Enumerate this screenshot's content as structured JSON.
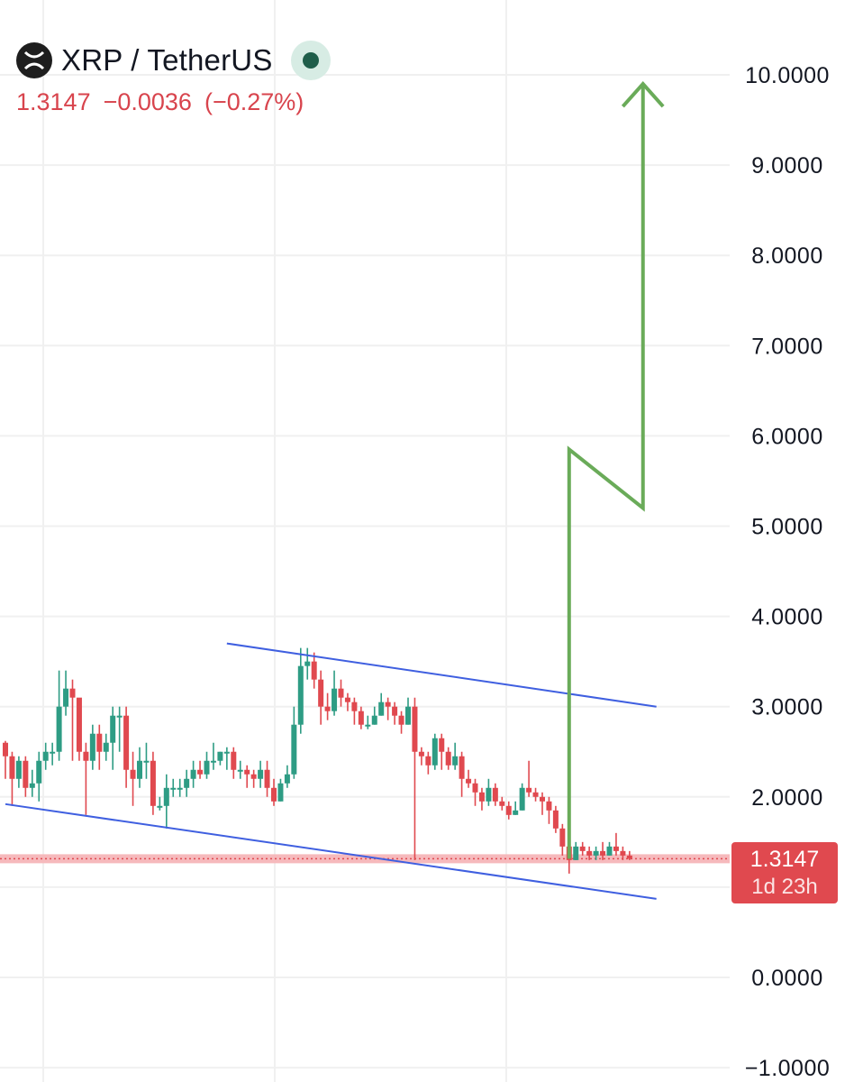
{
  "header": {
    "symbol": "XRP / TetherUS",
    "logo_icon": "xrp-logo-icon",
    "status": "market-open-dot",
    "last_price": "1.3147",
    "change": "−0.0036",
    "change_pct": "(−0.27%)",
    "change_color": "#d8444d"
  },
  "price_label": {
    "price": "1.3147",
    "countdown": "1d 23h",
    "color": "#e0494f"
  },
  "colors": {
    "up": "#2e9c84",
    "down": "#e0494f",
    "channel": "#3f5fe0",
    "projection": "#6aab59",
    "grid": "#f0f0f0"
  },
  "chart_data": {
    "type": "candlestick",
    "y_axis": {
      "ticks": [
        "10.0000",
        "9.0000",
        "8.0000",
        "7.0000",
        "6.0000",
        "5.0000",
        "4.0000",
        "3.0000",
        "2.0000",
        "0.0000",
        "−1.0000"
      ],
      "tick_values": [
        10,
        9,
        8,
        7,
        6,
        5,
        4,
        3,
        2,
        0,
        -1
      ],
      "range": [
        -1.15,
        10.8
      ]
    },
    "current_price": 1.3147,
    "candles": [
      [
        2.6,
        2.45,
        2.62,
        2.2
      ],
      [
        2.45,
        2.2,
        2.5,
        1.9
      ],
      [
        2.2,
        2.4,
        2.45,
        2.1
      ],
      [
        2.4,
        2.1,
        2.45,
        2.0
      ],
      [
        2.1,
        2.15,
        2.3,
        2.0
      ],
      [
        2.15,
        2.4,
        2.5,
        1.95
      ],
      [
        2.4,
        2.5,
        2.6,
        2.3
      ],
      [
        2.5,
        2.5,
        2.6,
        2.35
      ],
      [
        2.5,
        3.0,
        3.4,
        2.4
      ],
      [
        3.0,
        3.2,
        3.4,
        2.9
      ],
      [
        3.2,
        3.1,
        3.3,
        2.4
      ],
      [
        3.1,
        2.5,
        3.0,
        2.4
      ],
      [
        2.5,
        2.4,
        2.6,
        1.8
      ],
      [
        2.4,
        2.7,
        2.8,
        2.3
      ],
      [
        2.7,
        2.5,
        2.8,
        2.3
      ],
      [
        2.5,
        2.6,
        2.7,
        2.4
      ],
      [
        2.6,
        2.9,
        3.0,
        2.3
      ],
      [
        2.9,
        2.9,
        3.0,
        2.5
      ],
      [
        2.9,
        2.3,
        3.0,
        2.1
      ],
      [
        2.3,
        2.2,
        2.5,
        1.9
      ],
      [
        2.2,
        2.4,
        2.55,
        2.1
      ],
      [
        2.4,
        2.4,
        2.6,
        2.2
      ],
      [
        2.4,
        1.9,
        2.5,
        1.8
      ],
      [
        1.9,
        1.9,
        2.0,
        1.85
      ],
      [
        1.9,
        2.1,
        2.25,
        1.65
      ],
      [
        2.1,
        2.1,
        2.2,
        2.0
      ],
      [
        2.1,
        2.1,
        2.2,
        2.0
      ],
      [
        2.1,
        2.2,
        2.3,
        2.0
      ],
      [
        2.2,
        2.3,
        2.4,
        2.1
      ],
      [
        2.3,
        2.25,
        2.4,
        2.2
      ],
      [
        2.25,
        2.4,
        2.5,
        2.2
      ],
      [
        2.4,
        2.4,
        2.6,
        2.3
      ],
      [
        2.4,
        2.5,
        2.5,
        2.35
      ],
      [
        2.5,
        2.5,
        2.55,
        2.3
      ],
      [
        2.5,
        2.3,
        2.55,
        2.2
      ],
      [
        2.3,
        2.3,
        2.4,
        2.2
      ],
      [
        2.3,
        2.25,
        2.35,
        2.1
      ],
      [
        2.25,
        2.2,
        2.3,
        2.1
      ],
      [
        2.2,
        2.3,
        2.4,
        2.1
      ],
      [
        2.3,
        2.1,
        2.4,
        2.0
      ],
      [
        2.1,
        1.95,
        2.2,
        1.9
      ],
      [
        1.95,
        2.15,
        2.2,
        1.95
      ],
      [
        2.15,
        2.25,
        2.35,
        2.1
      ],
      [
        2.25,
        2.8,
        3.0,
        2.2
      ],
      [
        2.8,
        3.45,
        3.65,
        2.7
      ],
      [
        3.45,
        3.5,
        3.65,
        3.3
      ],
      [
        3.5,
        3.3,
        3.6,
        3.2
      ],
      [
        3.3,
        3.0,
        3.4,
        2.8
      ],
      [
        3.0,
        2.95,
        3.15,
        2.85
      ],
      [
        2.95,
        3.2,
        3.4,
        2.9
      ],
      [
        3.2,
        3.1,
        3.3,
        3.0
      ],
      [
        3.1,
        3.05,
        3.15,
        2.95
      ],
      [
        3.05,
        2.95,
        3.1,
        2.8
      ],
      [
        2.95,
        2.8,
        3.0,
        2.75
      ],
      [
        2.8,
        2.8,
        2.9,
        2.75
      ],
      [
        2.8,
        2.9,
        3.0,
        2.8
      ],
      [
        2.9,
        3.05,
        3.15,
        2.9
      ],
      [
        3.05,
        3.0,
        3.1,
        2.85
      ],
      [
        3.0,
        2.9,
        3.05,
        2.8
      ],
      [
        2.9,
        2.8,
        2.95,
        2.7
      ],
      [
        2.8,
        3.0,
        3.1,
        2.8
      ],
      [
        3.0,
        2.5,
        3.1,
        1.3
      ],
      [
        2.5,
        2.45,
        2.55,
        2.35
      ],
      [
        2.45,
        2.35,
        2.5,
        2.25
      ],
      [
        2.35,
        2.65,
        2.7,
        2.3
      ],
      [
        2.65,
        2.5,
        2.7,
        2.3
      ],
      [
        2.5,
        2.35,
        2.55,
        2.3
      ],
      [
        2.35,
        2.45,
        2.6,
        2.3
      ],
      [
        2.45,
        2.2,
        2.5,
        2.0
      ],
      [
        2.2,
        2.15,
        2.3,
        2.1
      ],
      [
        2.15,
        2.05,
        2.2,
        1.9
      ],
      [
        2.05,
        1.95,
        2.1,
        1.85
      ],
      [
        1.95,
        2.1,
        2.2,
        1.9
      ],
      [
        2.1,
        1.95,
        2.15,
        1.9
      ],
      [
        1.95,
        1.9,
        2.0,
        1.85
      ],
      [
        1.9,
        1.8,
        1.95,
        1.75
      ],
      [
        1.8,
        1.85,
        1.95,
        1.8
      ],
      [
        1.85,
        2.1,
        2.15,
        1.85
      ],
      [
        2.1,
        2.05,
        2.4,
        2.0
      ],
      [
        2.05,
        2.0,
        2.1,
        1.95
      ],
      [
        2.0,
        1.95,
        2.05,
        1.8
      ],
      [
        1.95,
        1.85,
        2.0,
        1.7
      ],
      [
        1.85,
        1.65,
        1.9,
        1.6
      ],
      [
        1.65,
        1.45,
        1.7,
        1.35
      ],
      [
        1.45,
        1.3,
        1.5,
        1.15
      ],
      [
        1.3,
        1.45,
        1.5,
        1.3
      ],
      [
        1.45,
        1.4,
        1.5,
        1.35
      ],
      [
        1.4,
        1.35,
        1.45,
        1.3
      ],
      [
        1.35,
        1.4,
        1.45,
        1.3
      ],
      [
        1.4,
        1.35,
        1.5,
        1.3
      ],
      [
        1.35,
        1.45,
        1.5,
        1.35
      ],
      [
        1.45,
        1.4,
        1.6,
        1.35
      ],
      [
        1.4,
        1.35,
        1.45,
        1.3
      ],
      [
        1.35,
        1.3147,
        1.4,
        1.3
      ]
    ],
    "channel_upper": [
      [
        33,
        3.7
      ],
      [
        97,
        3.0
      ]
    ],
    "channel_lower": [
      [
        0,
        1.92
      ],
      [
        97,
        0.87
      ]
    ],
    "projection_path": [
      [
        84,
        1.3147
      ],
      [
        84,
        5.85
      ],
      [
        95,
        5.2
      ],
      [
        95,
        9.9
      ]
    ],
    "arrow_head": [
      [
        92,
        9.65
      ],
      [
        95,
        9.9
      ],
      [
        98,
        9.65
      ]
    ]
  }
}
